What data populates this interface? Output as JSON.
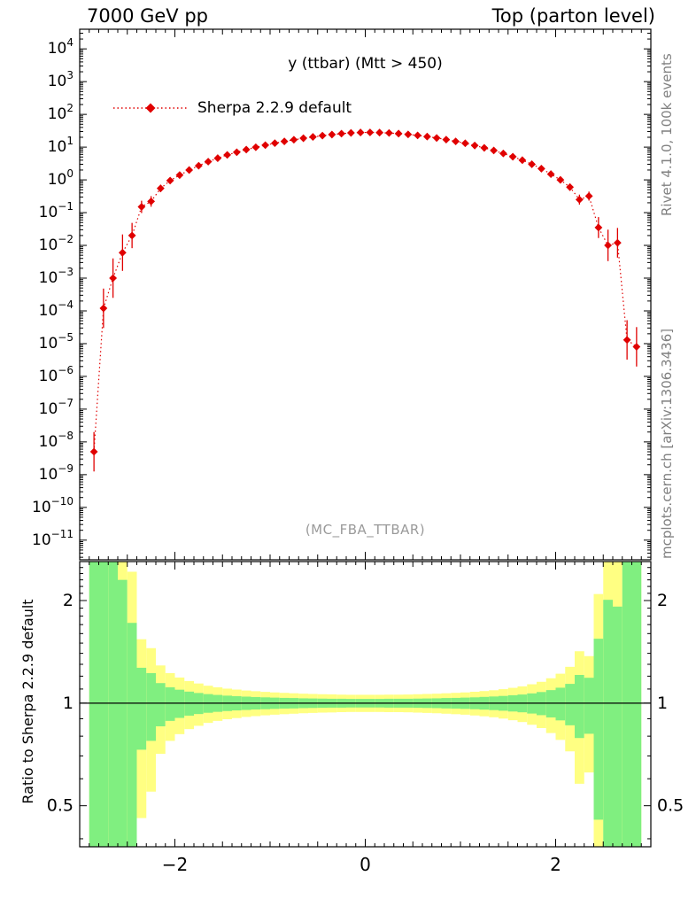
{
  "page": {
    "background": "#ffffff"
  },
  "chart_data": {
    "type": "line",
    "header_left": "7000 GeV pp",
    "header_right": "Top (parton level)",
    "title": "y (ttbar)  (Mtt > 450)",
    "legend_label": "Sherpa 2.2.9 default",
    "watermark": "(MC_FBA_TTBAR)",
    "right_label_top": "Rivet 4.1.0, 100k events",
    "right_label_bottom": "mcplots.cern.ch [arXiv:1306.3436]",
    "ratio_ylabel": "Ratio to Sherpa 2.2.9 default",
    "series_color": "#e00000",
    "band_yellow": "#ffff82",
    "band_green": "#80ef80",
    "axis_color": "#000000",
    "xlim": [
      -3,
      3
    ],
    "xticks": [
      -2,
      0,
      2
    ],
    "xtick_labels": [
      "−2",
      "0",
      "2"
    ],
    "x_minor_step": 0.1,
    "main_decade_range": [
      -11.6,
      4.6
    ],
    "main_tick_exponents": [
      -11,
      -10,
      -9,
      -8,
      -7,
      -6,
      -5,
      -4,
      -3,
      -2,
      -1,
      0,
      1,
      2,
      3,
      4
    ],
    "ratio_log2_range": [
      -1.4,
      1.38
    ],
    "ratio_ticks": [
      2,
      1,
      0.5
    ],
    "ratio_tick_labels": [
      "2",
      "1",
      "0.5"
    ],
    "ratio_minor_ticks": [
      0.4,
      0.6,
      0.7,
      0.8,
      0.9,
      1.1,
      1.2,
      1.3,
      1.4,
      1.5,
      1.6,
      1.7,
      1.8,
      1.9,
      2.1,
      2.2,
      2.3,
      2.4,
      2.5
    ],
    "bin_width": 0.1,
    "x": [
      -2.85,
      -2.75,
      -2.65,
      -2.55,
      -2.45,
      -2.35,
      -2.25,
      -2.15,
      -2.05,
      -1.95,
      -1.85,
      -1.75,
      -1.65,
      -1.55,
      -1.45,
      -1.35,
      -1.25,
      -1.15,
      -1.05,
      -0.95,
      -0.85,
      -0.75,
      -0.65,
      -0.55,
      -0.45,
      -0.35,
      -0.25,
      -0.15,
      -0.05,
      0.05,
      0.15,
      0.25,
      0.35,
      0.45,
      0.55,
      0.65,
      0.75,
      0.85,
      0.95,
      1.05,
      1.15,
      1.25,
      1.35,
      1.45,
      1.55,
      1.65,
      1.75,
      1.85,
      1.95,
      2.05,
      2.15,
      2.25,
      2.35,
      2.45,
      2.55,
      2.65,
      2.75,
      2.85
    ],
    "values": [
      5e-09,
      0.00012,
      0.001,
      0.006,
      0.02,
      0.15,
      0.22,
      0.55,
      0.95,
      1.4,
      2.0,
      2.7,
      3.6,
      4.6,
      5.8,
      7.0,
      8.4,
      9.9,
      11.5,
      13.2,
      15.0,
      16.8,
      18.7,
      20.5,
      22.4,
      24.2,
      25.8,
      27.2,
      28.0,
      28.2,
      27.8,
      27.0,
      25.9,
      24.5,
      22.8,
      21.0,
      19.0,
      17.0,
      15.0,
      13.1,
      11.2,
      9.5,
      7.9,
      6.4,
      5.1,
      4.0,
      3.0,
      2.2,
      1.5,
      1.0,
      0.6,
      0.25,
      0.32,
      0.035,
      0.01,
      0.012,
      1.3e-05,
      8e-06
    ],
    "yellow_frac": [
      2800,
      18,
      6.3,
      2.6,
      1.43,
      0.54,
      0.45,
      0.29,
      0.225,
      0.189,
      0.161,
      0.142,
      0.125,
      0.113,
      0.103,
      0.096,
      0.089,
      0.084,
      0.079,
      0.075,
      0.072,
      0.069,
      0.066,
      0.064,
      0.062,
      0.061,
      0.059,
      0.058,
      0.058,
      0.058,
      0.058,
      0.059,
      0.059,
      0.06,
      0.062,
      0.064,
      0.066,
      0.069,
      0.072,
      0.075,
      0.08,
      0.085,
      0.091,
      0.099,
      0.109,
      0.12,
      0.136,
      0.155,
      0.183,
      0.22,
      0.278,
      0.42,
      0.374,
      1.09,
      2.02,
      1.84,
      55,
      70
    ],
    "green_frac": [
      1400,
      9,
      3.15,
      1.3,
      0.72,
      0.27,
      0.225,
      0.145,
      0.113,
      0.095,
      0.081,
      0.071,
      0.063,
      0.057,
      0.052,
      0.048,
      0.045,
      0.042,
      0.04,
      0.038,
      0.036,
      0.035,
      0.033,
      0.032,
      0.031,
      0.03,
      0.03,
      0.029,
      0.029,
      0.029,
      0.029,
      0.03,
      0.03,
      0.03,
      0.031,
      0.032,
      0.033,
      0.035,
      0.036,
      0.038,
      0.04,
      0.043,
      0.046,
      0.05,
      0.055,
      0.06,
      0.068,
      0.078,
      0.092,
      0.11,
      0.139,
      0.21,
      0.187,
      0.545,
      1.01,
      0.92,
      27,
      35
    ]
  }
}
